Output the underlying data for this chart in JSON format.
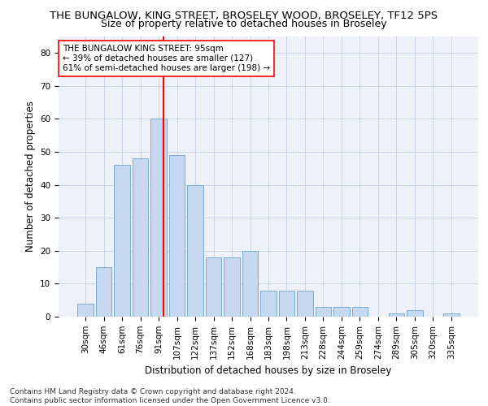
{
  "title": "THE BUNGALOW, KING STREET, BROSELEY WOOD, BROSELEY, TF12 5PS",
  "subtitle": "Size of property relative to detached houses in Broseley",
  "xlabel": "Distribution of detached houses by size in Broseley",
  "ylabel": "Number of detached properties",
  "categories": [
    "30sqm",
    "46sqm",
    "61sqm",
    "76sqm",
    "91sqm",
    "107sqm",
    "122sqm",
    "137sqm",
    "152sqm",
    "168sqm",
    "183sqm",
    "198sqm",
    "213sqm",
    "228sqm",
    "244sqm",
    "259sqm",
    "274sqm",
    "289sqm",
    "305sqm",
    "320sqm",
    "335sqm"
  ],
  "values": [
    4,
    15,
    46,
    48,
    60,
    49,
    40,
    18,
    18,
    20,
    8,
    8,
    8,
    3,
    3,
    3,
    0,
    1,
    2,
    0,
    1
  ],
  "bar_color": "#c5d8f0",
  "bar_edge_color": "#7aadd4",
  "vline_color": "red",
  "ylim": [
    0,
    85
  ],
  "yticks": [
    0,
    10,
    20,
    30,
    40,
    50,
    60,
    70,
    80
  ],
  "grid_color": "#c8d4e8",
  "background_color": "#eef2f8",
  "property_label": "THE BUNGALOW KING STREET: 95sqm",
  "annotation_line1": "← 39% of detached houses are smaller (127)",
  "annotation_line2": "61% of semi-detached houses are larger (198) →",
  "footer_line1": "Contains HM Land Registry data © Crown copyright and database right 2024.",
  "footer_line2": "Contains public sector information licensed under the Open Government Licence v3.0.",
  "title_fontsize": 9.5,
  "subtitle_fontsize": 9,
  "axis_label_fontsize": 8.5,
  "tick_fontsize": 7.5,
  "annotation_fontsize": 7.5,
  "footer_fontsize": 6.5
}
